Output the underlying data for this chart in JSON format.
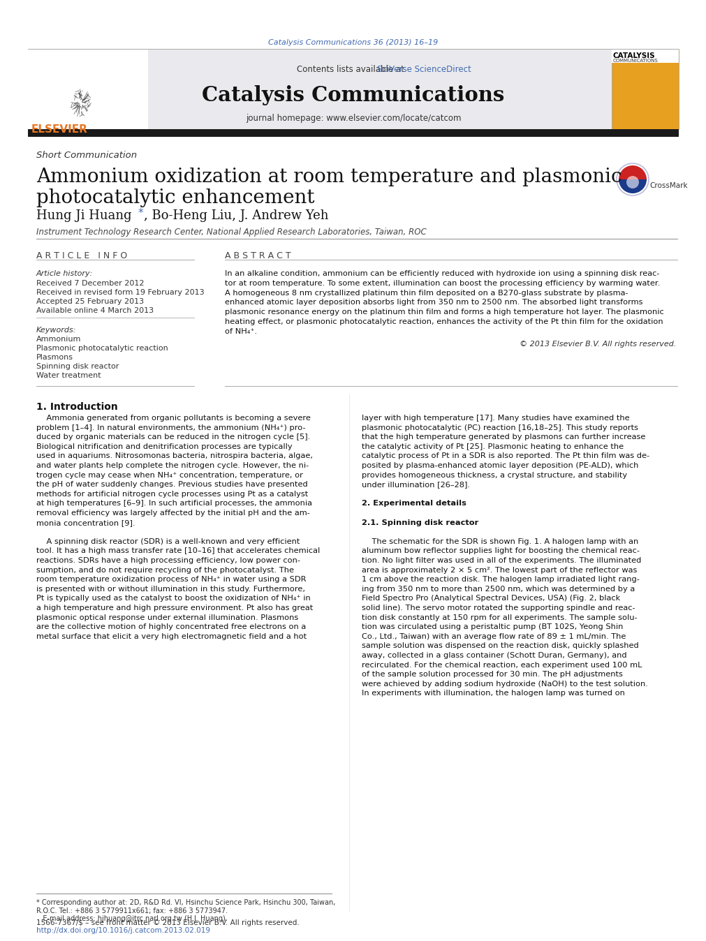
{
  "page_bg": "#ffffff",
  "top_citation": "Catalysis Communications 36 (2013) 16–19",
  "top_citation_color": "#4169b0",
  "header_bg": "#e8e8ee",
  "journal_name": "Catalysis Communications",
  "contents_line": "Contents lists available at",
  "sciverse_text": "SciVerse ScienceDirect",
  "homepage_line": "journal homepage: www.elsevier.com/locate/catcom",
  "section_label": "Short Communication",
  "article_title_line1": "Ammonium oxidization at room temperature and plasmonic",
  "article_title_line2": "photocatalytic enhancement",
  "article_info_header": "A R T I C L E   I N F O",
  "abstract_header": "A B S T R A C T",
  "article_history_label": "Article history:",
  "received1": "Received 7 December 2012",
  "received2": "Received in revised form 19 February 2013",
  "accepted": "Accepted 25 February 2013",
  "available": "Available online 4 March 2013",
  "keywords_label": "Keywords:",
  "keyword1": "Ammonium",
  "keyword2": "Plasmonic photocatalytic reaction",
  "keyword3": "Plasmons",
  "keyword4": "Spinning disk reactor",
  "keyword5": "Water treatment",
  "copyright": "© 2013 Elsevier B.V. All rights reserved.",
  "affiliation": "Instrument Technology Research Center, National Applied Research Laboratories, Taiwan, ROC",
  "intro_header": "1. Introduction",
  "exp_header": "2. Experimental details",
  "sdr_header": "2.1. Spinning disk reactor",
  "link_color": "#4169b0",
  "elsevier_orange": "#E87722",
  "abstract_lines": [
    "In an alkaline condition, ammonium can be efficiently reduced with hydroxide ion using a spinning disk reac-",
    "tor at room temperature. To some extent, illumination can boost the processing efficiency by warming water.",
    "A homogeneous 8 nm crystallized platinum thin film deposited on a B270-glass substrate by plasma-",
    "enhanced atomic layer deposition absorbs light from 350 nm to 2500 nm. The absorbed light transforms",
    "plasmonic resonance energy on the platinum thin film and forms a high temperature hot layer. The plasmonic",
    "heating effect, or plasmonic photocatalytic reaction, enhances the activity of the Pt thin film for the oxidation",
    "of NH₄⁺."
  ],
  "intro_col1_lines": [
    "    Ammonia generated from organic pollutants is becoming a severe",
    "problem [1–4]. In natural environments, the ammonium (NH₄⁺) pro-",
    "duced by organic materials can be reduced in the nitrogen cycle [5].",
    "Biological nitrification and denitrification processes are typically",
    "used in aquariums. Nitrosomonas bacteria, nitrospira bacteria, algae,",
    "and water plants help complete the nitrogen cycle. However, the ni-",
    "trogen cycle may cease when NH₄⁺ concentration, temperature, or",
    "the pH of water suddenly changes. Previous studies have presented",
    "methods for artificial nitrogen cycle processes using Pt as a catalyst",
    "at high temperatures [6–9]. In such artificial processes, the ammonia",
    "removal efficiency was largely affected by the initial pH and the am-",
    "monia concentration [9].",
    "",
    "    A spinning disk reactor (SDR) is a well-known and very efficient",
    "tool. It has a high mass transfer rate [10–16] that accelerates chemical",
    "reactions. SDRs have a high processing efficiency, low power con-",
    "sumption, and do not require recycling of the photocatalyst. The",
    "room temperature oxidization process of NH₄⁺ in water using a SDR",
    "is presented with or without illumination in this study. Furthermore,",
    "Pt is typically used as the catalyst to boost the oxidization of NH₄⁺ in",
    "a high temperature and high pressure environment. Pt also has great",
    "plasmonic optical response under external illumination. Plasmons",
    "are the collective motion of highly concentrated free electrons on a",
    "metal surface that elicit a very high electromagnetic field and a hot"
  ],
  "intro_col2_lines": [
    "layer with high temperature [17]. Many studies have examined the",
    "plasmonic photocatalytic (PC) reaction [16,18–25]. This study reports",
    "that the high temperature generated by plasmons can further increase",
    "the catalytic activity of Pt [25]. Plasmonic heating to enhance the",
    "catalytic process of Pt in a SDR is also reported. The Pt thin film was de-",
    "posited by plasma-enhanced atomic layer deposition (PE-ALD), which",
    "provides homogeneous thickness, a crystal structure, and stability",
    "under illumination [26–28].",
    "",
    "2. Experimental details",
    "",
    "2.1. Spinning disk reactor",
    "",
    "    The schematic for the SDR is shown Fig. 1. A halogen lamp with an",
    "aluminum bow reflector supplies light for boosting the chemical reac-",
    "tion. No light filter was used in all of the experiments. The illuminated",
    "area is approximately 2 × 5 cm². The lowest part of the reflector was",
    "1 cm above the reaction disk. The halogen lamp irradiated light rang-",
    "ing from 350 nm to more than 2500 nm, which was determined by a",
    "Field Spectro Pro (Analytical Spectral Devices, USA) (Fig. 2, black",
    "solid line). The servo motor rotated the supporting spindle and reac-",
    "tion disk constantly at 150 rpm for all experiments. The sample solu-",
    "tion was circulated using a peristaltic pump (BT 102S, Yeong Shin",
    "Co., Ltd., Taiwan) with an average flow rate of 89 ± 1 mL/min. The",
    "sample solution was dispensed on the reaction disk, quickly splashed",
    "away, collected in a glass container (Schott Duran, Germany), and",
    "recirculated. For the chemical reaction, each experiment used 100 mL",
    "of the sample solution processed for 30 min. The pH adjustments",
    "were achieved by adding sodium hydroxide (NaOH) to the test solution.",
    "In experiments with illumination, the halogen lamp was turned on"
  ],
  "footer_note": "* Corresponding author at: 2D, R&D Rd. VI, Hsinchu Science Park, Hsinchu 300, Taiwan,\nR.O.C. Tel.: +886 3 5779911x661; fax: +886 3 5773947.\n   E-mail address: hjhuang@itrc.narl.org.tw (H.J. Huang).",
  "footer_issn": "1566-7367/$ – see front matter © 2013 Elsevier B.V. All rights reserved.",
  "footer_doi": "http://dx.doi.org/10.1016/j.catcom.2013.02.019"
}
